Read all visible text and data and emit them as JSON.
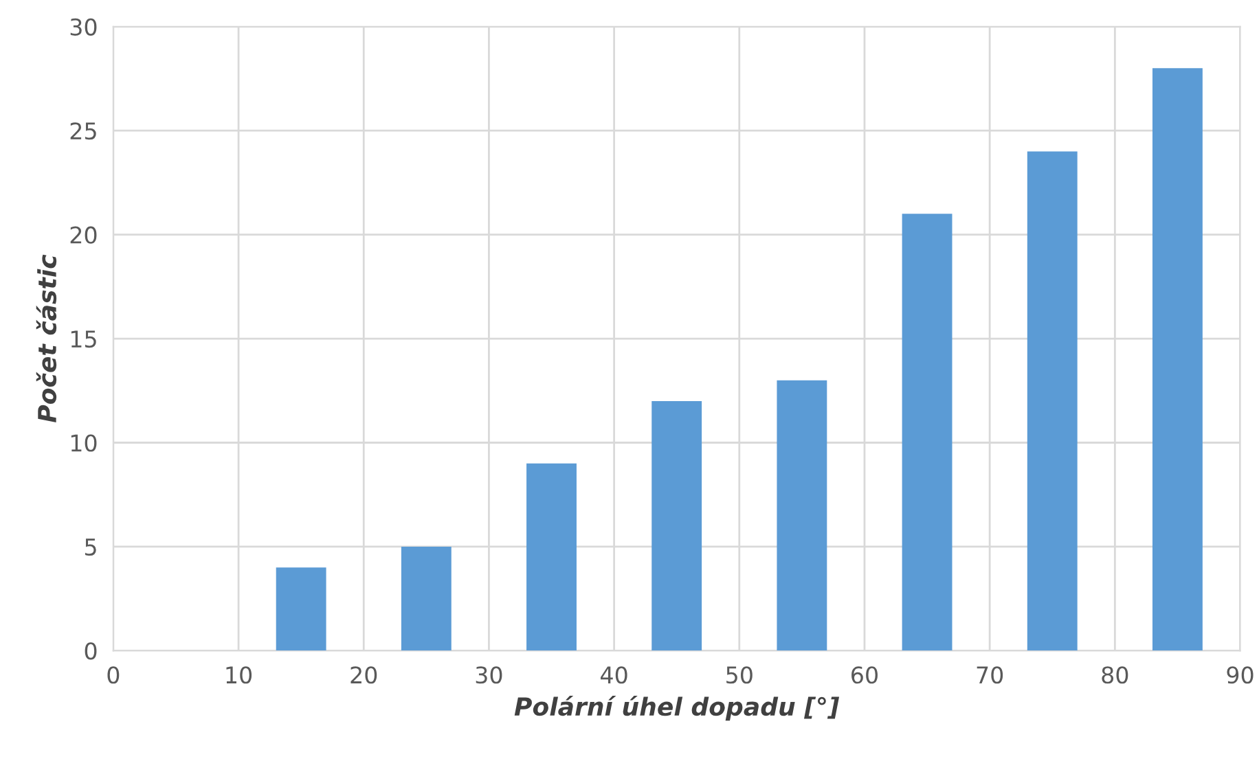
{
  "chart_data": {
    "type": "bar",
    "xlabel": "Polární úhel dopadu [°]",
    "ylabel": "Počet částic",
    "x": [
      15,
      25,
      35,
      45,
      55,
      65,
      75,
      85
    ],
    "values": [
      4,
      5,
      9,
      12,
      13,
      21,
      24,
      28
    ],
    "color": "#5b9bd5",
    "xlim": [
      0,
      90
    ],
    "xticks": [
      0,
      10,
      20,
      30,
      40,
      50,
      60,
      70,
      80,
      90
    ],
    "ylim": [
      0,
      30
    ],
    "yticks": [
      0,
      5,
      10,
      15,
      20,
      25,
      30
    ],
    "grid": true
  }
}
